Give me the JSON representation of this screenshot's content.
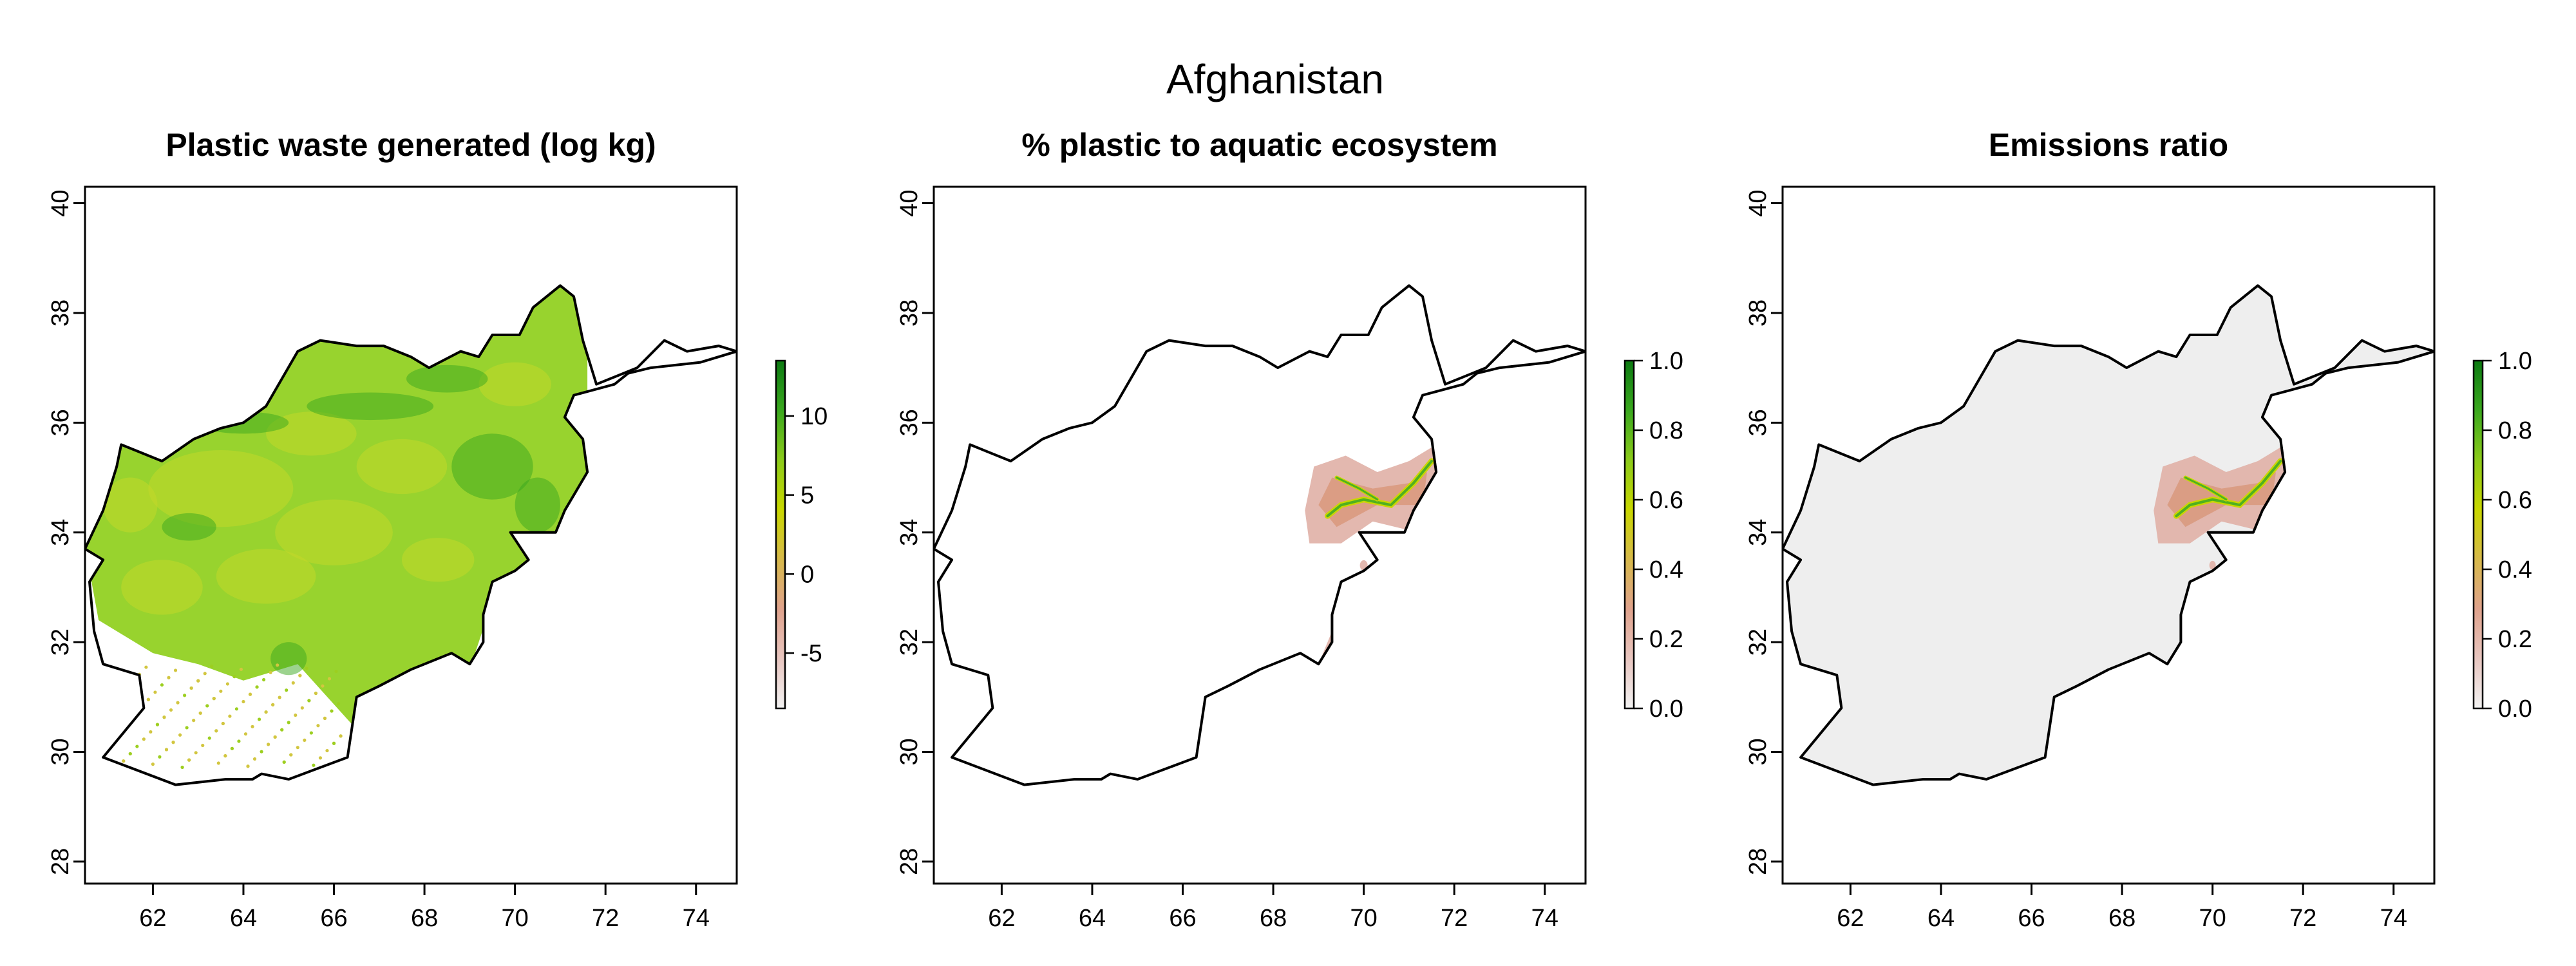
{
  "figure": {
    "title": "Afghanistan"
  },
  "axes": {
    "x_ticks": [
      62,
      64,
      66,
      68,
      70,
      72,
      74
    ],
    "y_ticks": [
      28,
      30,
      32,
      34,
      36,
      38,
      40
    ],
    "xlim": [
      60.5,
      74.9
    ],
    "ylim": [
      27.6,
      40.3
    ]
  },
  "colors": {
    "ramp": [
      "#f2f2f2",
      "#e8c6c0",
      "#dfa28c",
      "#d7b94a",
      "#c9d700",
      "#8ccb1a",
      "#3aa81e",
      "#0c7a12"
    ],
    "background_gray": "#eeeeee",
    "border": "#000000"
  },
  "panels": [
    {
      "title": "Plastic waste generated (log kg)",
      "legend": {
        "min": -8.5,
        "max": 13.5,
        "ticks": [
          "-5",
          "0",
          "5",
          "10"
        ],
        "tick_values": [
          -5,
          0,
          5,
          10
        ]
      },
      "fill": "country-wide"
    },
    {
      "title": "% plastic to aquatic ecosystem",
      "legend": {
        "min": 0.0,
        "max": 1.0,
        "ticks": [
          "0.0",
          "0.2",
          "0.4",
          "0.6",
          "0.8",
          "1.0"
        ],
        "tick_values": [
          0.0,
          0.2,
          0.4,
          0.6,
          0.8,
          1.0
        ]
      },
      "fill": "east-hotspots"
    },
    {
      "title": "Emissions ratio",
      "legend": {
        "min": 0.0,
        "max": 1.0,
        "ticks": [
          "0.0",
          "0.2",
          "0.4",
          "0.6",
          "0.8",
          "1.0"
        ],
        "tick_values": [
          0.0,
          0.2,
          0.4,
          0.6,
          0.8,
          1.0
        ]
      },
      "fill": "gray-with-east-hotspots"
    }
  ],
  "country_outline_lonlat": [
    [
      60.5,
      33.7
    ],
    [
      60.9,
      33.5
    ],
    [
      60.6,
      33.1
    ],
    [
      60.7,
      32.2
    ],
    [
      60.9,
      31.6
    ],
    [
      61.7,
      31.4
    ],
    [
      61.8,
      30.8
    ],
    [
      60.9,
      29.9
    ],
    [
      62.5,
      29.4
    ],
    [
      63.6,
      29.5
    ],
    [
      64.2,
      29.5
    ],
    [
      64.4,
      29.6
    ],
    [
      65.0,
      29.5
    ],
    [
      66.3,
      29.9
    ],
    [
      66.5,
      31.0
    ],
    [
      67.0,
      31.2
    ],
    [
      67.7,
      31.5
    ],
    [
      68.0,
      31.6
    ],
    [
      68.6,
      31.8
    ],
    [
      69.0,
      31.6
    ],
    [
      69.3,
      32.0
    ],
    [
      69.3,
      32.5
    ],
    [
      69.5,
      33.1
    ],
    [
      70.0,
      33.3
    ],
    [
      70.3,
      33.5
    ],
    [
      69.9,
      34.0
    ],
    [
      70.9,
      34.0
    ],
    [
      71.1,
      34.4
    ],
    [
      71.6,
      35.1
    ],
    [
      71.5,
      35.7
    ],
    [
      71.1,
      36.1
    ],
    [
      71.3,
      36.5
    ],
    [
      72.2,
      36.7
    ],
    [
      72.5,
      36.9
    ],
    [
      73.0,
      37.0
    ],
    [
      74.1,
      37.1
    ],
    [
      74.9,
      37.3
    ],
    [
      74.5,
      37.4
    ],
    [
      73.8,
      37.3
    ],
    [
      73.3,
      37.5
    ],
    [
      72.7,
      37.0
    ],
    [
      71.8,
      36.7
    ],
    [
      71.5,
      37.5
    ],
    [
      71.3,
      38.3
    ],
    [
      71.0,
      38.5
    ],
    [
      70.4,
      38.1
    ],
    [
      70.1,
      37.6
    ],
    [
      69.5,
      37.6
    ],
    [
      69.2,
      37.2
    ],
    [
      68.8,
      37.3
    ],
    [
      68.1,
      37.0
    ],
    [
      67.7,
      37.2
    ],
    [
      67.1,
      37.4
    ],
    [
      66.5,
      37.4
    ],
    [
      65.7,
      37.5
    ],
    [
      65.2,
      37.3
    ],
    [
      64.5,
      36.3
    ],
    [
      64.0,
      36.0
    ],
    [
      63.5,
      35.9
    ],
    [
      62.9,
      35.7
    ],
    [
      62.2,
      35.3
    ],
    [
      61.3,
      35.6
    ],
    [
      61.2,
      35.2
    ],
    [
      60.9,
      34.4
    ],
    [
      60.5,
      33.7
    ]
  ]
}
